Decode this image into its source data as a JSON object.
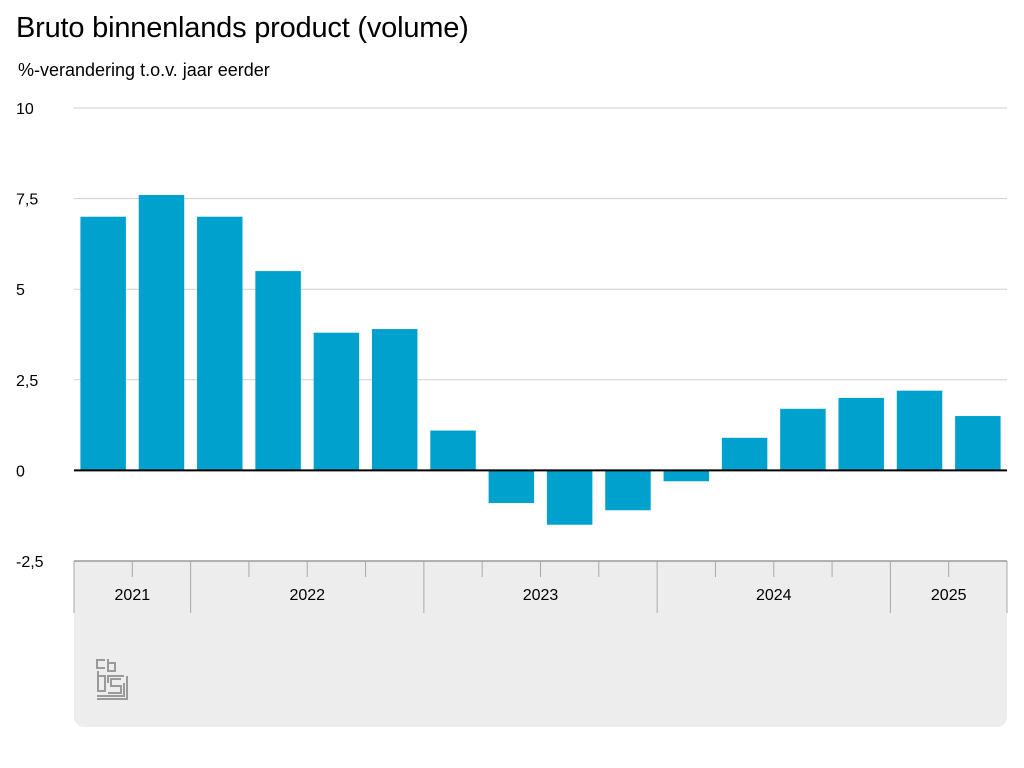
{
  "chart_data": {
    "type": "bar",
    "title": "Bruto binnenlands product (volume)",
    "subtitle": "%-verandering t.o.v. jaar eerder",
    "xlabel": "",
    "ylabel": "%-verandering t.o.v. jaar eerder",
    "ylim": [
      -2.5,
      10
    ],
    "yticks": [
      {
        "value": 10,
        "label": "10"
      },
      {
        "value": 7.5,
        "label": "7,5"
      },
      {
        "value": 5,
        "label": "5"
      },
      {
        "value": 2.5,
        "label": "2,5"
      },
      {
        "value": 0,
        "label": "0"
      },
      {
        "value": -2.5,
        "label": "-2,5"
      }
    ],
    "grid": true,
    "bar_color": "#00a1cd",
    "categories": [
      "2021-Q3",
      "2021-Q4",
      "2022-Q1",
      "2022-Q2",
      "2022-Q3",
      "2022-Q4",
      "2023-Q1",
      "2023-Q2",
      "2023-Q3",
      "2023-Q4",
      "2024-Q1",
      "2024-Q2",
      "2024-Q3",
      "2024-Q4",
      "2025-Q1",
      "2025-Q2"
    ],
    "values": [
      7.0,
      7.6,
      7.0,
      5.5,
      3.8,
      3.9,
      1.1,
      -0.9,
      -1.5,
      -1.1,
      -0.3,
      0.9,
      1.7,
      2.0,
      2.2,
      1.5
    ],
    "periods": [
      {
        "label": "2021",
        "start": 0,
        "count": 2
      },
      {
        "label": "2022",
        "start": 2,
        "count": 4
      },
      {
        "label": "2023",
        "start": 6,
        "count": 4
      },
      {
        "label": "2024",
        "start": 10,
        "count": 4
      },
      {
        "label": "2025",
        "start": 14,
        "count": 2
      }
    ]
  },
  "logo": {
    "icon": "cbs-logo-icon",
    "text": "cbs"
  }
}
